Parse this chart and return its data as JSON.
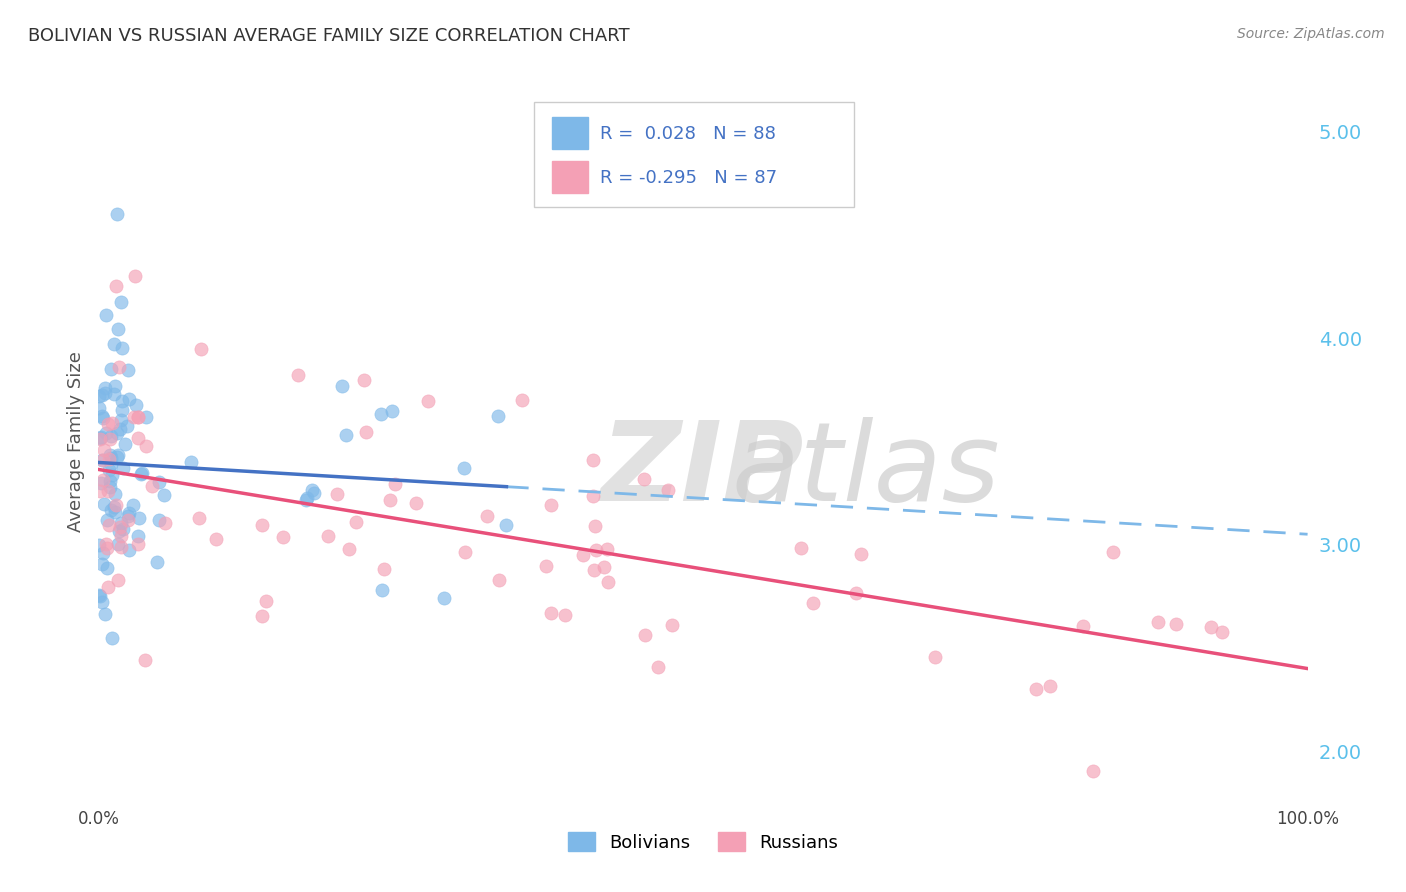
{
  "title": "BOLIVIAN VS RUSSIAN AVERAGE FAMILY SIZE CORRELATION CHART",
  "source_text": "Source: ZipAtlas.com",
  "ylabel": "Average Family Size",
  "xlim": [
    0.0,
    100.0
  ],
  "ylim": [
    1.75,
    5.25
  ],
  "yticks": [
    2.0,
    3.0,
    4.0,
    5.0
  ],
  "xticks": [
    0.0,
    100.0
  ],
  "xticklabels": [
    "0.0%",
    "100.0%"
  ],
  "legend_r1": "R =  0.028",
  "legend_n1": "N = 88",
  "legend_r2": "R = -0.295",
  "legend_n2": "N = 87",
  "legend_label1": "Bolivians",
  "legend_label2": "Russians",
  "color_bolivian": "#7eb8e8",
  "color_russian": "#f4a0b5",
  "color_trend_bolivian_solid": "#4472c4",
  "color_trend_bolivian_dash": "#7eb8e8",
  "color_trend_russian": "#e8507a",
  "background_color": "#ffffff",
  "grid_color": "#d0d0d0",
  "title_color": "#4472c4",
  "source_color": "#888888",
  "legend_text_color": "#4472c4",
  "ytick_color": "#5bc0eb"
}
